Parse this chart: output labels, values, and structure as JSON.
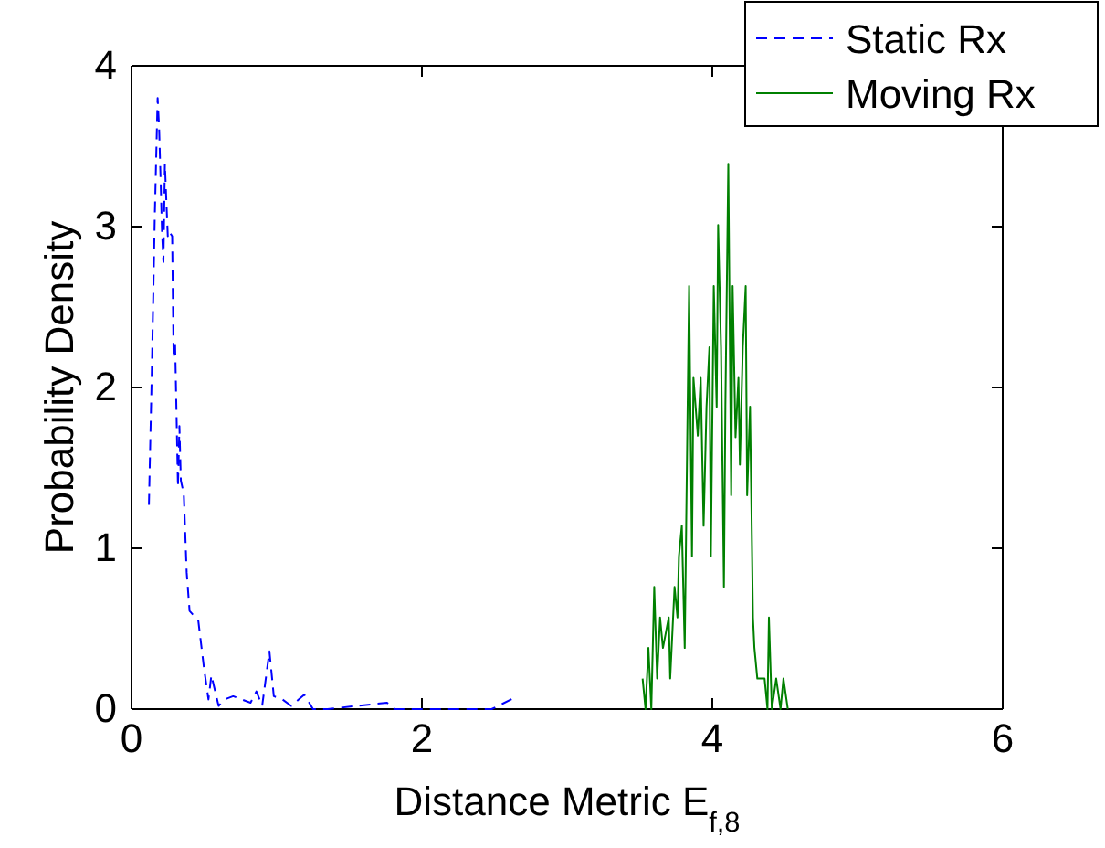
{
  "chart_data": {
    "type": "line",
    "xlabel": "Distance Metric E$_{f,8}$",
    "ylabel": "Probability Density",
    "xlim": [
      0,
      6
    ],
    "xticks": [
      0,
      2,
      4,
      6
    ],
    "ylim": [
      0,
      4
    ],
    "yticks": [
      0,
      1,
      2,
      3,
      4
    ],
    "grid": false,
    "legend": "top right",
    "series": [
      {
        "name": "Static Rx",
        "color": "#0000ff",
        "line_style": "dashed",
        "x": [
          0.12,
          0.14,
          0.16,
          0.18,
          0.19,
          0.2,
          0.21,
          0.22,
          0.23,
          0.24,
          0.25,
          0.26,
          0.28,
          0.29,
          0.3,
          0.32,
          0.33,
          0.34,
          0.36,
          0.38,
          0.4,
          0.46,
          0.5,
          0.53,
          0.55,
          0.6,
          0.64,
          0.7,
          0.76,
          0.82,
          0.86,
          0.9,
          0.95,
          0.98,
          1.04,
          1.1,
          1.19,
          1.25,
          1.35,
          1.76,
          1.81,
          2.48,
          2.66
        ],
        "values": [
          1.27,
          2.1,
          3.05,
          3.8,
          3.62,
          3.31,
          2.97,
          2.78,
          3.39,
          3.16,
          2.94,
          2.97,
          2.94,
          2.18,
          2.29,
          1.38,
          1.76,
          1.42,
          1.34,
          0.85,
          0.61,
          0.55,
          0.25,
          0.06,
          0.21,
          0.02,
          0.06,
          0.08,
          0.06,
          0.04,
          0.11,
          0.02,
          0.36,
          0.08,
          0.06,
          0.02,
          0.09,
          0,
          0,
          0.04,
          0,
          0,
          0.08
        ]
      },
      {
        "name": "Moving Rx",
        "color": "#008000",
        "line_style": "solid",
        "x": [
          3.52,
          3.54,
          3.56,
          3.58,
          3.6,
          3.62,
          3.64,
          3.66,
          3.7,
          3.71,
          3.74,
          3.76,
          3.77,
          3.79,
          3.81,
          3.82,
          3.84,
          3.86,
          3.87,
          3.9,
          3.92,
          3.94,
          3.96,
          3.98,
          3.99,
          4.01,
          4.03,
          4.04,
          4.06,
          4.08,
          4.09,
          4.11,
          4.13,
          4.14,
          4.16,
          4.18,
          4.19,
          4.21,
          4.23,
          4.24,
          4.26,
          4.28,
          4.29,
          4.31,
          4.36,
          4.38,
          4.39,
          4.41,
          4.44,
          4.47,
          4.49,
          4.52
        ],
        "values": [
          0.19,
          0,
          0.38,
          0,
          0.76,
          0.19,
          0.57,
          0.38,
          0.57,
          0.19,
          0.76,
          0.57,
          0.95,
          1.14,
          0.38,
          1.14,
          2.63,
          0.95,
          2.06,
          1.7,
          2.06,
          1.14,
          1.88,
          2.25,
          0.95,
          2.63,
          1.88,
          3.01,
          2.25,
          0.76,
          1.88,
          3.39,
          1.33,
          2.63,
          1.69,
          2.06,
          1.52,
          2.25,
          2.63,
          1.33,
          1.88,
          0.57,
          0.38,
          0.19,
          0.19,
          0,
          0.57,
          0,
          0.19,
          0,
          0.19,
          0
        ]
      }
    ]
  }
}
